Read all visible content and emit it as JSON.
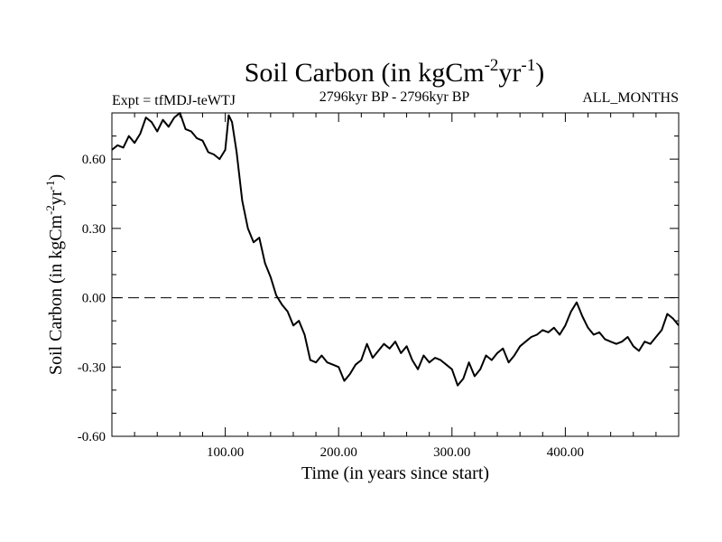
{
  "chart_data": {
    "type": "line",
    "title_main": "Soil Carbon (in kgCm",
    "title_sup1": "-2",
    "title_mid": "yr",
    "title_sup2": "-1",
    "title_end": ")",
    "subtitle_left": "Expt = tfMDJ-teWTJ",
    "subtitle_center": "2796kyr BP - 2796kyr BP",
    "subtitle_right": "ALL_MONTHS",
    "xlabel": "Time (in years since start)",
    "ylabel_main": "Soil Carbon (in kgCm",
    "ylabel_sup1": "-2",
    "ylabel_mid": "yr",
    "ylabel_sup2": "-1",
    "ylabel_end": ")",
    "xlim": [
      0,
      500
    ],
    "ylim": [
      -0.6,
      0.8
    ],
    "x_ticks": [
      100,
      200,
      300,
      400
    ],
    "x_tick_labels": [
      "100.00",
      "200.00",
      "300.00",
      "400.00"
    ],
    "y_ticks": [
      -0.6,
      -0.3,
      0.0,
      0.3,
      0.6
    ],
    "y_tick_labels": [
      "-0.60",
      "-0.30",
      "0.00",
      "0.30",
      "0.60"
    ],
    "reference_line": 0.0,
    "series": [
      {
        "name": "Soil Carbon",
        "x": [
          0,
          5,
          10,
          15,
          20,
          25,
          30,
          35,
          40,
          45,
          50,
          55,
          60,
          65,
          70,
          75,
          80,
          85,
          90,
          95,
          100,
          103,
          106,
          110,
          115,
          120,
          125,
          130,
          135,
          140,
          145,
          150,
          155,
          160,
          165,
          170,
          175,
          180,
          185,
          190,
          195,
          200,
          205,
          210,
          215,
          220,
          225,
          230,
          235,
          240,
          245,
          250,
          255,
          260,
          265,
          270,
          275,
          280,
          285,
          290,
          295,
          300,
          305,
          310,
          315,
          320,
          325,
          330,
          335,
          340,
          345,
          350,
          355,
          360,
          365,
          370,
          375,
          380,
          385,
          390,
          395,
          400,
          405,
          410,
          415,
          420,
          425,
          430,
          435,
          440,
          445,
          450,
          455,
          460,
          465,
          470,
          475,
          480,
          485,
          490,
          495,
          500
        ],
        "y": [
          0.64,
          0.66,
          0.65,
          0.7,
          0.67,
          0.71,
          0.78,
          0.76,
          0.72,
          0.77,
          0.74,
          0.78,
          0.8,
          0.73,
          0.72,
          0.69,
          0.68,
          0.63,
          0.62,
          0.6,
          0.64,
          0.79,
          0.76,
          0.63,
          0.42,
          0.3,
          0.24,
          0.26,
          0.15,
          0.09,
          0.01,
          -0.03,
          -0.06,
          -0.12,
          -0.1,
          -0.16,
          -0.27,
          -0.28,
          -0.25,
          -0.28,
          -0.29,
          -0.3,
          -0.36,
          -0.33,
          -0.29,
          -0.27,
          -0.2,
          -0.26,
          -0.23,
          -0.2,
          -0.22,
          -0.19,
          -0.24,
          -0.21,
          -0.27,
          -0.31,
          -0.25,
          -0.28,
          -0.26,
          -0.27,
          -0.29,
          -0.31,
          -0.38,
          -0.35,
          -0.28,
          -0.34,
          -0.31,
          -0.25,
          -0.27,
          -0.24,
          -0.22,
          -0.28,
          -0.25,
          -0.21,
          -0.19,
          -0.17,
          -0.16,
          -0.14,
          -0.15,
          -0.13,
          -0.16,
          -0.12,
          -0.06,
          -0.02,
          -0.08,
          -0.13,
          -0.16,
          -0.15,
          -0.18,
          -0.19,
          -0.2,
          -0.19,
          -0.17,
          -0.21,
          -0.23,
          -0.19,
          -0.2,
          -0.17,
          -0.14,
          -0.07,
          -0.09,
          -0.12
        ]
      }
    ]
  }
}
